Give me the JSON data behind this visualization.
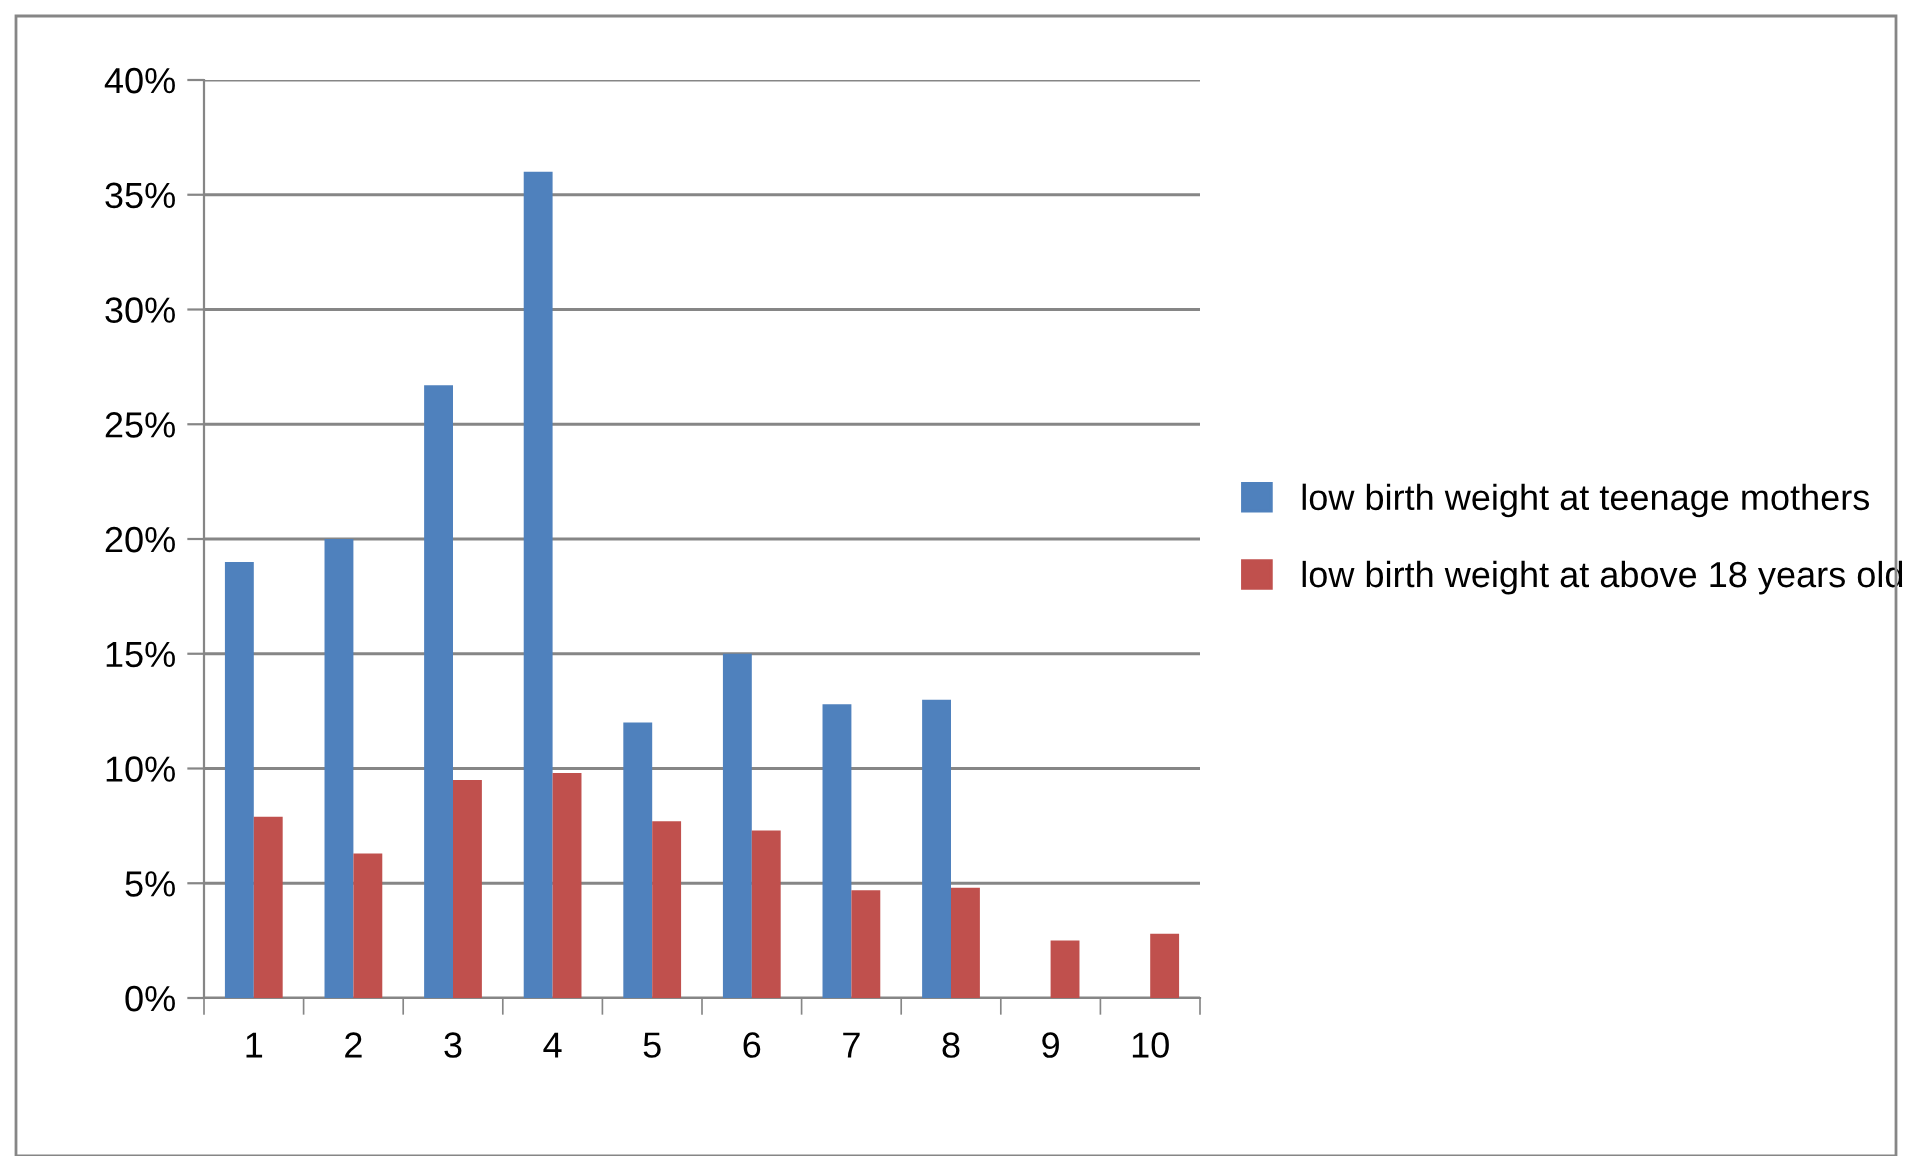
{
  "chart_data": {
    "type": "bar",
    "categories": [
      "1",
      "2",
      "3",
      "4",
      "5",
      "6",
      "7",
      "8",
      "9",
      "10"
    ],
    "series": [
      {
        "name": "low birth weight at teenage mothers",
        "color": "#4f81bd",
        "values": [
          19.0,
          20.0,
          26.7,
          36.0,
          12.0,
          15.0,
          12.8,
          13.0,
          null,
          null
        ]
      },
      {
        "name": "low birth weight at above 18 years old",
        "color": "#c0504d",
        "values": [
          7.9,
          6.3,
          9.5,
          9.8,
          7.7,
          7.3,
          4.7,
          4.8,
          2.5,
          2.8
        ]
      }
    ],
    "ylim": [
      0,
      40
    ],
    "yticks": [
      {
        "value": 0,
        "label": "0%"
      },
      {
        "value": 5,
        "label": "5%"
      },
      {
        "value": 10,
        "label": "10%"
      },
      {
        "value": 15,
        "label": "15%"
      },
      {
        "value": 20,
        "label": "20%"
      },
      {
        "value": 25,
        "label": "25%"
      },
      {
        "value": 30,
        "label": "30%"
      },
      {
        "value": 35,
        "label": "35%"
      },
      {
        "value": 40,
        "label": "40%"
      }
    ],
    "grid": "y",
    "legend": "right"
  }
}
